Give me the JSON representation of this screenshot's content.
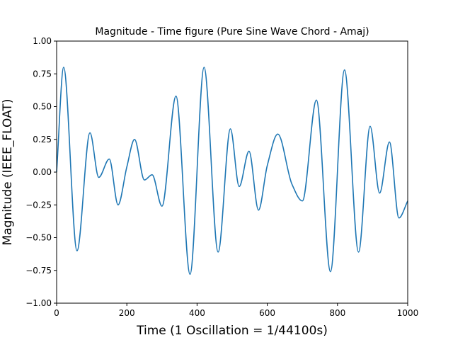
{
  "chart_data": {
    "type": "line",
    "title": "Magnitude - Time figure (Pure Sine Wave Chord - Amaj)",
    "xlabel": "Time (1 Oscillation = 1/44100s)",
    "ylabel": "Magnitude (IEEE_FLOAT)",
    "xlim": [
      0,
      1000
    ],
    "ylim": [
      -1.0,
      1.0
    ],
    "xticks": [
      0,
      200,
      400,
      600,
      800,
      1000
    ],
    "xtick_labels": [
      "0",
      "200",
      "400",
      "600",
      "800",
      "1000"
    ],
    "yticks": [
      -1.0,
      -0.75,
      -0.5,
      -0.25,
      0.0,
      0.25,
      0.5,
      0.75,
      1.0
    ],
    "ytick_labels": [
      "−1.00",
      "−0.75",
      "−0.50",
      "−0.25",
      "0.00",
      "0.25",
      "0.50",
      "0.75",
      "1.00"
    ],
    "grid": false,
    "series": [
      {
        "color": "#1f77b4",
        "x": [
          0,
          20,
          58,
          95,
          120,
          150,
          175,
          200,
          222,
          250,
          272,
          300,
          340,
          380,
          420,
          460,
          495,
          520,
          548,
          575,
          600,
          630,
          670,
          700,
          740,
          780,
          820,
          860,
          893,
          920,
          948,
          975,
          1000
        ],
        "y": [
          0.0,
          0.8,
          -0.6,
          0.3,
          -0.04,
          0.1,
          -0.25,
          0.04,
          0.25,
          -0.06,
          -0.02,
          -0.26,
          0.58,
          -0.78,
          0.8,
          -0.61,
          0.33,
          -0.11,
          0.16,
          -0.29,
          0.05,
          0.29,
          -0.09,
          -0.22,
          0.55,
          -0.76,
          0.78,
          -0.61,
          0.35,
          -0.16,
          0.23,
          -0.35,
          -0.22
        ]
      }
    ]
  }
}
